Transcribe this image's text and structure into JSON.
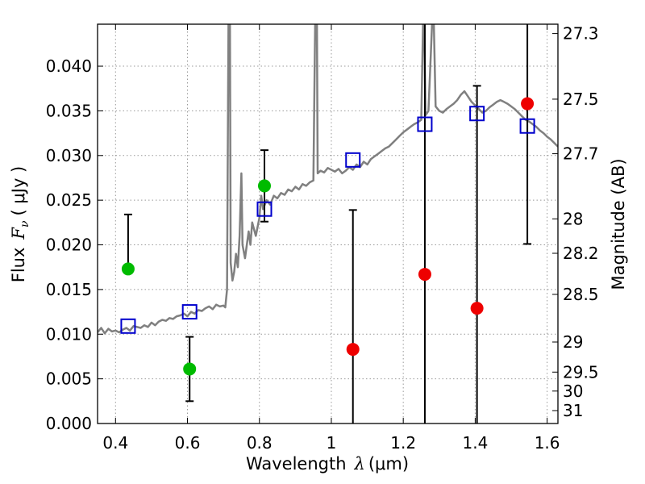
{
  "chart_data": {
    "type": "scatter",
    "xlabel_main": "Wavelength",
    "xlabel_symbol": "λ",
    "xlabel_unit": "(μm)",
    "ylabel_main": "Flux",
    "ylabel_symbol": "F",
    "ylabel_subscript": "ν",
    "ylabel_unit": "( μJy )",
    "ylabel_right": "Magnitude (AB)",
    "xlim": [
      0.35,
      1.63
    ],
    "ylim": [
      0.0,
      0.0447
    ],
    "grid": true,
    "x_ticks": [
      {
        "value": 0.4,
        "label": "0.4"
      },
      {
        "value": 0.6,
        "label": "0.6"
      },
      {
        "value": 0.8,
        "label": "0.8"
      },
      {
        "value": 1.0,
        "label": "1"
      },
      {
        "value": 1.2,
        "label": "1.2"
      },
      {
        "value": 1.4,
        "label": "1.4"
      },
      {
        "value": 1.6,
        "label": "1.6"
      }
    ],
    "y_ticks": [
      {
        "value": 0.0,
        "label": "0.000"
      },
      {
        "value": 0.005,
        "label": "0.005"
      },
      {
        "value": 0.01,
        "label": "0.010"
      },
      {
        "value": 0.015,
        "label": "0.015"
      },
      {
        "value": 0.02,
        "label": "0.020"
      },
      {
        "value": 0.025,
        "label": "0.025"
      },
      {
        "value": 0.03,
        "label": "0.030"
      },
      {
        "value": 0.035,
        "label": "0.035"
      },
      {
        "value": 0.04,
        "label": "0.040"
      }
    ],
    "mag_ticks": [
      {
        "value": 27.3,
        "label": "27.3"
      },
      {
        "value": 27.5,
        "label": "27.5"
      },
      {
        "value": 27.7,
        "label": "27.7"
      },
      {
        "value": 28.0,
        "label": "28"
      },
      {
        "value": 28.2,
        "label": "28.2"
      },
      {
        "value": 28.5,
        "label": "28.5"
      },
      {
        "value": 29.0,
        "label": "29"
      },
      {
        "value": 29.5,
        "label": "29.5"
      },
      {
        "value": 30.0,
        "label": "30"
      },
      {
        "value": 31.0,
        "label": "31"
      }
    ],
    "colors": {
      "sed": "#808080",
      "model_photometry": "#0000cc",
      "detections": "#00bb00",
      "upper_limits": "#ee0000",
      "errorbar": "#000000",
      "grid": "#999999"
    },
    "series": [
      {
        "name": "SED model",
        "type": "line",
        "points": [
          [
            0.35,
            0.0102
          ],
          [
            0.36,
            0.0107
          ],
          [
            0.37,
            0.0101
          ],
          [
            0.38,
            0.0106
          ],
          [
            0.39,
            0.0103
          ],
          [
            0.4,
            0.0104
          ],
          [
            0.41,
            0.0102
          ],
          [
            0.42,
            0.0105
          ],
          [
            0.43,
            0.0107
          ],
          [
            0.44,
            0.0104
          ],
          [
            0.45,
            0.0109
          ],
          [
            0.46,
            0.0108
          ],
          [
            0.47,
            0.0107
          ],
          [
            0.48,
            0.011
          ],
          [
            0.49,
            0.0108
          ],
          [
            0.5,
            0.0113
          ],
          [
            0.51,
            0.011
          ],
          [
            0.52,
            0.0114
          ],
          [
            0.53,
            0.0116
          ],
          [
            0.54,
            0.0115
          ],
          [
            0.55,
            0.0118
          ],
          [
            0.56,
            0.0117
          ],
          [
            0.57,
            0.012
          ],
          [
            0.58,
            0.0121
          ],
          [
            0.59,
            0.0123
          ],
          [
            0.6,
            0.012
          ],
          [
            0.61,
            0.0125
          ],
          [
            0.62,
            0.0123
          ],
          [
            0.63,
            0.0127
          ],
          [
            0.64,
            0.0126
          ],
          [
            0.65,
            0.0129
          ],
          [
            0.66,
            0.0131
          ],
          [
            0.67,
            0.0128
          ],
          [
            0.68,
            0.0133
          ],
          [
            0.69,
            0.0131
          ],
          [
            0.7,
            0.0132
          ],
          [
            0.705,
            0.013
          ],
          [
            0.71,
            0.015
          ],
          [
            0.712,
            0.03
          ],
          [
            0.714,
            0.0447
          ],
          [
            0.718,
            0.0447
          ],
          [
            0.72,
            0.018
          ],
          [
            0.725,
            0.016
          ],
          [
            0.73,
            0.017
          ],
          [
            0.735,
            0.019
          ],
          [
            0.74,
            0.0175
          ],
          [
            0.745,
            0.021
          ],
          [
            0.75,
            0.028
          ],
          [
            0.753,
            0.02
          ],
          [
            0.76,
            0.0185
          ],
          [
            0.77,
            0.0215
          ],
          [
            0.775,
            0.02
          ],
          [
            0.78,
            0.0225
          ],
          [
            0.79,
            0.021
          ],
          [
            0.8,
            0.023
          ],
          [
            0.805,
            0.0255
          ],
          [
            0.81,
            0.024
          ],
          [
            0.82,
            0.025
          ],
          [
            0.83,
            0.0245
          ],
          [
            0.84,
            0.0255
          ],
          [
            0.85,
            0.0252
          ],
          [
            0.86,
            0.0258
          ],
          [
            0.87,
            0.0256
          ],
          [
            0.88,
            0.0262
          ],
          [
            0.89,
            0.026
          ],
          [
            0.9,
            0.0265
          ],
          [
            0.91,
            0.0262
          ],
          [
            0.92,
            0.0268
          ],
          [
            0.93,
            0.0266
          ],
          [
            0.94,
            0.027
          ],
          [
            0.95,
            0.0272
          ],
          [
            0.955,
            0.0447
          ],
          [
            0.96,
            0.0447
          ],
          [
            0.962,
            0.028
          ],
          [
            0.97,
            0.0283
          ],
          [
            0.98,
            0.0281
          ],
          [
            0.99,
            0.0286
          ],
          [
            1.0,
            0.0284
          ],
          [
            1.01,
            0.0282
          ],
          [
            1.02,
            0.0285
          ],
          [
            1.03,
            0.028
          ],
          [
            1.04,
            0.0283
          ],
          [
            1.05,
            0.0287
          ],
          [
            1.06,
            0.0284
          ],
          [
            1.07,
            0.029
          ],
          [
            1.08,
            0.0287
          ],
          [
            1.09,
            0.0293
          ],
          [
            1.1,
            0.029
          ],
          [
            1.11,
            0.0296
          ],
          [
            1.12,
            0.0299
          ],
          [
            1.13,
            0.0302
          ],
          [
            1.14,
            0.0305
          ],
          [
            1.15,
            0.0308
          ],
          [
            1.16,
            0.031
          ],
          [
            1.17,
            0.0314
          ],
          [
            1.18,
            0.0318
          ],
          [
            1.19,
            0.0322
          ],
          [
            1.2,
            0.0326
          ],
          [
            1.21,
            0.0329
          ],
          [
            1.22,
            0.0332
          ],
          [
            1.23,
            0.0335
          ],
          [
            1.24,
            0.0337
          ],
          [
            1.25,
            0.034
          ],
          [
            1.255,
            0.0447
          ],
          [
            1.258,
            0.0447
          ],
          [
            1.262,
            0.0345
          ],
          [
            1.27,
            0.035
          ],
          [
            1.28,
            0.0447
          ],
          [
            1.285,
            0.0447
          ],
          [
            1.29,
            0.0355
          ],
          [
            1.3,
            0.035
          ],
          [
            1.31,
            0.0348
          ],
          [
            1.32,
            0.0352
          ],
          [
            1.33,
            0.0355
          ],
          [
            1.34,
            0.0358
          ],
          [
            1.35,
            0.0362
          ],
          [
            1.36,
            0.0368
          ],
          [
            1.37,
            0.0372
          ],
          [
            1.38,
            0.0366
          ],
          [
            1.39,
            0.036
          ],
          [
            1.4,
            0.0356
          ],
          [
            1.41,
            0.0352
          ],
          [
            1.42,
            0.0348
          ],
          [
            1.43,
            0.035
          ],
          [
            1.44,
            0.0354
          ],
          [
            1.45,
            0.0357
          ],
          [
            1.46,
            0.036
          ],
          [
            1.47,
            0.0362
          ],
          [
            1.48,
            0.036
          ],
          [
            1.49,
            0.0358
          ],
          [
            1.5,
            0.0355
          ],
          [
            1.51,
            0.0352
          ],
          [
            1.52,
            0.0348
          ],
          [
            1.53,
            0.0344
          ],
          [
            1.54,
            0.034
          ],
          [
            1.55,
            0.0338
          ],
          [
            1.56,
            0.0335
          ],
          [
            1.57,
            0.0332
          ],
          [
            1.58,
            0.0328
          ],
          [
            1.59,
            0.0325
          ],
          [
            1.6,
            0.0321
          ],
          [
            1.61,
            0.0318
          ],
          [
            1.62,
            0.0314
          ],
          [
            1.63,
            0.031
          ]
        ]
      },
      {
        "name": "Model photometry",
        "marker": "square",
        "points": [
          [
            0.435,
            0.0109
          ],
          [
            0.606,
            0.0125
          ],
          [
            0.814,
            0.024
          ],
          [
            1.06,
            0.0295
          ],
          [
            1.26,
            0.0335
          ],
          [
            1.405,
            0.0347
          ],
          [
            1.545,
            0.0333
          ]
        ]
      },
      {
        "name": "Detections",
        "marker": "circle",
        "points": [
          {
            "x": 0.435,
            "y": 0.0173,
            "err_low": 0.0173,
            "err_high": 0.0234
          },
          {
            "x": 0.606,
            "y": 0.0061,
            "err_low": 0.0025,
            "err_high": 0.0097
          },
          {
            "x": 0.814,
            "y": 0.0266,
            "err_low": 0.0226,
            "err_high": 0.0306
          }
        ]
      },
      {
        "name": "Upper limits",
        "marker": "circle",
        "points": [
          {
            "x": 1.06,
            "y": 0.0083,
            "err_low": 0.0,
            "err_high": 0.0239
          },
          {
            "x": 1.26,
            "y": 0.0167,
            "err_low": 0.0,
            "err_high": 0.0447
          },
          {
            "x": 1.405,
            "y": 0.0129,
            "err_low": 0.0,
            "err_high": 0.0378
          },
          {
            "x": 1.545,
            "y": 0.0358,
            "err_low": 0.0201,
            "err_high": 0.0447
          }
        ]
      }
    ]
  }
}
